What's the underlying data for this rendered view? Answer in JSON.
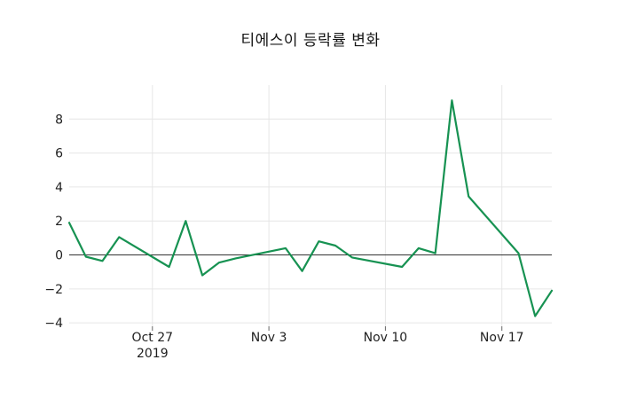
{
  "chart_data": {
    "type": "line",
    "title": "티에스이 등락률 변화",
    "xlabel": "",
    "ylabel": "",
    "legend": "none",
    "grid": true,
    "zero_line": true,
    "xlim": [
      "2019-10-22",
      "2019-11-20"
    ],
    "ylim": [
      -4.2,
      10.0
    ],
    "x_ticks": [
      {
        "date": "2019-10-27",
        "label": "Oct 27",
        "sublabel": "2019"
      },
      {
        "date": "2019-11-03",
        "label": "Nov 3",
        "sublabel": ""
      },
      {
        "date": "2019-11-10",
        "label": "Nov 10",
        "sublabel": ""
      },
      {
        "date": "2019-11-17",
        "label": "Nov 17",
        "sublabel": ""
      }
    ],
    "y_ticks": [
      {
        "value": 8,
        "label": "8"
      },
      {
        "value": 6,
        "label": "6"
      },
      {
        "value": 4,
        "label": "4"
      },
      {
        "value": 2,
        "label": "2"
      },
      {
        "value": 0,
        "label": "0"
      },
      {
        "value": -2,
        "label": "−2"
      },
      {
        "value": -4,
        "label": "−4"
      }
    ],
    "series": [
      {
        "name": "등락률",
        "color": "#179252",
        "points": [
          [
            "2019-10-22",
            1.9
          ],
          [
            "2019-10-23",
            -0.1
          ],
          [
            "2019-10-24",
            -0.35
          ],
          [
            "2019-10-25",
            1.05
          ],
          [
            "2019-10-28",
            -0.7
          ],
          [
            "2019-10-29",
            2.0
          ],
          [
            "2019-10-30",
            -1.2
          ],
          [
            "2019-10-31",
            -0.45
          ],
          [
            "2019-11-01",
            -0.2
          ],
          [
            "2019-11-04",
            0.4
          ],
          [
            "2019-11-05",
            -0.95
          ],
          [
            "2019-11-06",
            0.8
          ],
          [
            "2019-11-07",
            0.55
          ],
          [
            "2019-11-08",
            -0.15
          ],
          [
            "2019-11-11",
            -0.7
          ],
          [
            "2019-11-12",
            0.4
          ],
          [
            "2019-11-13",
            0.1
          ],
          [
            "2019-11-14",
            9.1
          ],
          [
            "2019-11-15",
            3.45
          ],
          [
            "2019-11-18",
            0.1
          ],
          [
            "2019-11-19",
            -3.6
          ],
          [
            "2019-11-20",
            -2.1
          ]
        ]
      }
    ]
  },
  "style": {
    "background": "#ffffff",
    "grid_color": "#e6e6e6",
    "zero_line_color": "#333333",
    "tick_mark_color": "#666666",
    "tick_label_color": "#1f1f1f",
    "title_color": "#141414",
    "line_color": "#179252"
  }
}
